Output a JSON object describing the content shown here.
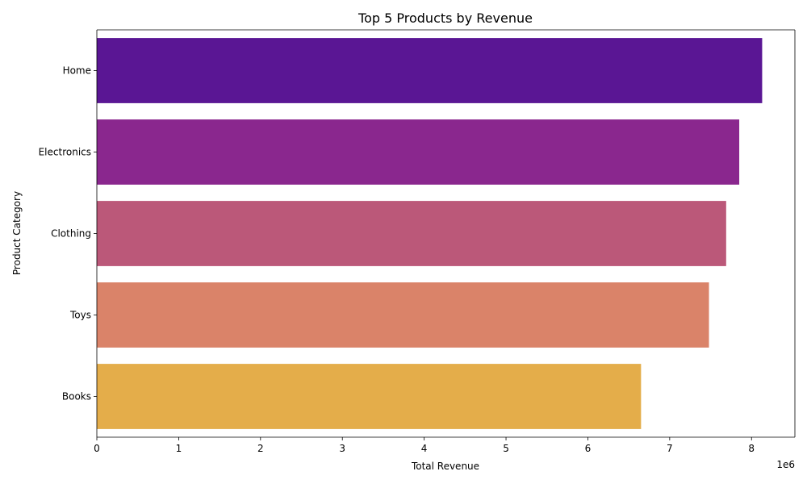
{
  "chart_data": {
    "type": "bar",
    "orientation": "horizontal",
    "title": "Top 5 Products by Revenue",
    "xlabel": "Total Revenue",
    "ylabel": "Product Category",
    "x_offset_label": "1e6",
    "xlim": [
      0,
      8.53
    ],
    "x_ticks": [
      0,
      1,
      2,
      3,
      4,
      5,
      6,
      7,
      8
    ],
    "x_tick_labels": [
      "0",
      "1",
      "2",
      "3",
      "4",
      "5",
      "6",
      "7",
      "8"
    ],
    "categories": [
      "Home",
      "Electronics",
      "Clothing",
      "Toys",
      "Books"
    ],
    "values": [
      8.13,
      7.85,
      7.69,
      7.48,
      6.65
    ],
    "value_scale": 1000000,
    "colors": [
      "#5a1694",
      "#8a278e",
      "#bb5879",
      "#da8369",
      "#e4ad4a"
    ],
    "grid": false,
    "legend": "none"
  }
}
